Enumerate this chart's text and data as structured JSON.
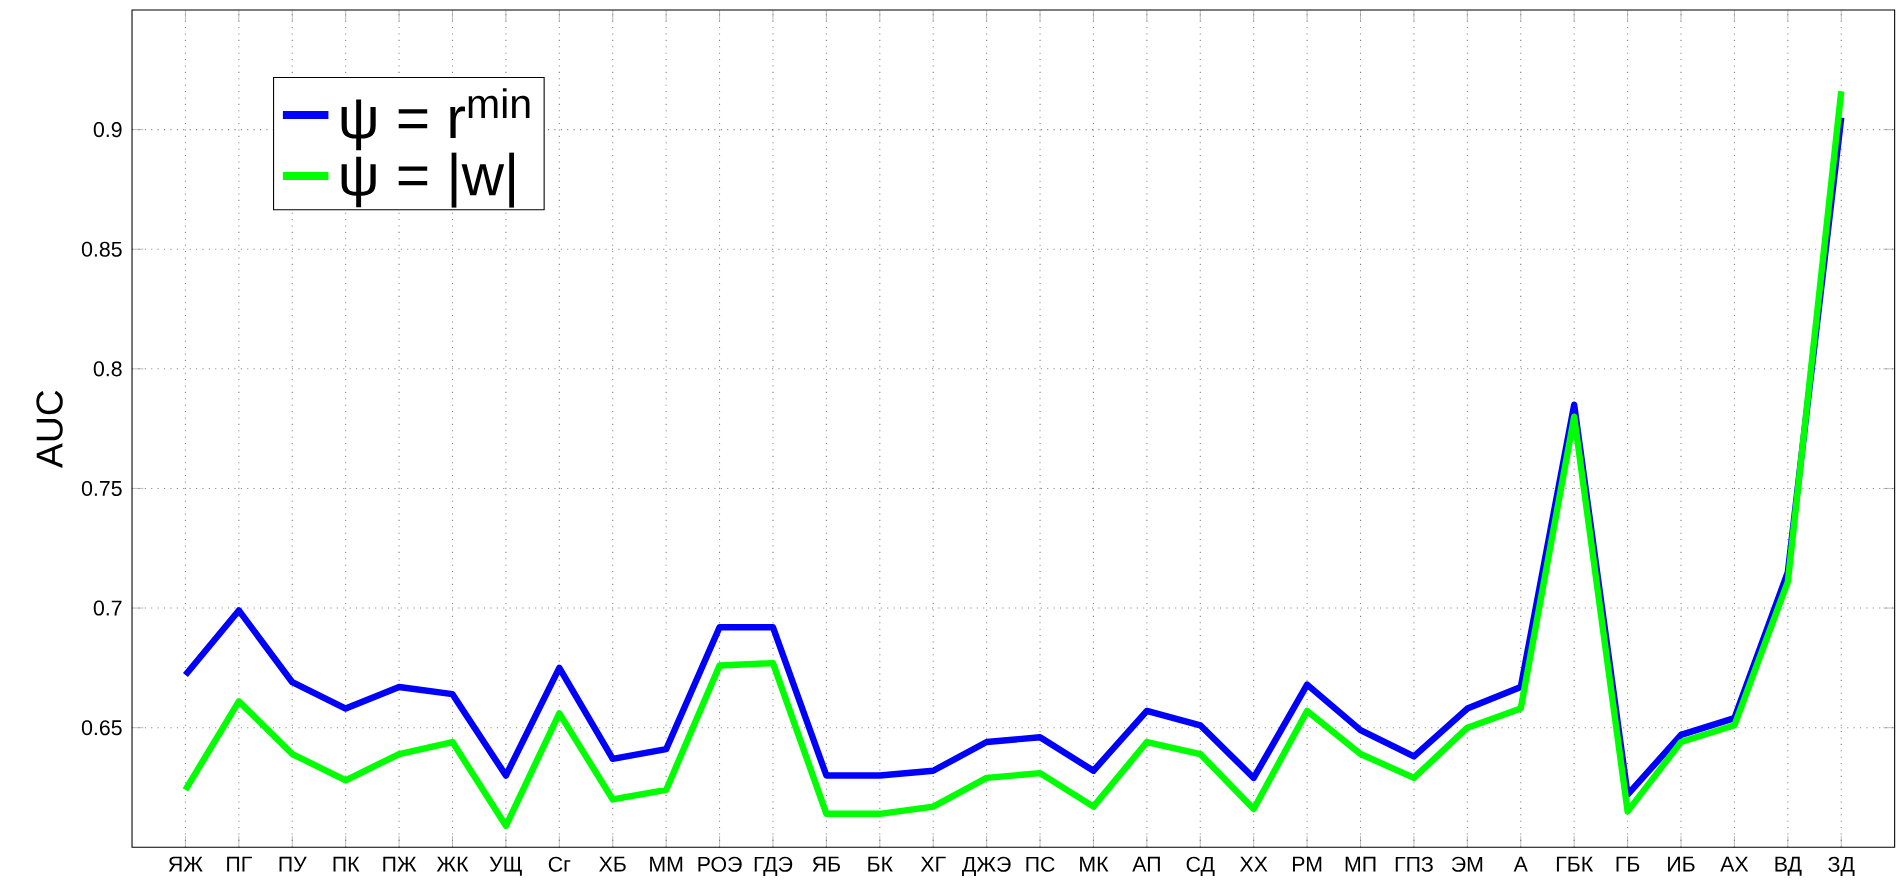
{
  "chart_data": {
    "type": "line",
    "ylabel": "AUC",
    "categories": [
      "ЯЖ",
      "ПГ",
      "ПУ",
      "ПК",
      "ПЖ",
      "ЖК",
      "УЩ",
      "Сг",
      "ХБ",
      "ММ",
      "РОЭ",
      "ГДЭ",
      "ЯБ",
      "БК",
      "ХГ",
      "ДЖЭ",
      "ПС",
      "МК",
      "АП",
      "СД",
      "ХХ",
      "РМ",
      "МП",
      "ГПЗ",
      "ЭМ",
      "А",
      "ГБК",
      "ГБ",
      "ИБ",
      "АХ",
      "ВД",
      "ЗД"
    ],
    "series": [
      {
        "name": "ψ = r$^{min}$",
        "color": "#0000ff",
        "values": [
          0.672,
          0.699,
          0.669,
          0.658,
          0.667,
          0.664,
          0.63,
          0.675,
          0.637,
          0.641,
          0.692,
          0.692,
          0.63,
          0.63,
          0.632,
          0.644,
          0.646,
          0.632,
          0.657,
          0.651,
          0.629,
          0.668,
          0.649,
          0.638,
          0.658,
          0.667,
          0.785,
          0.622,
          0.647,
          0.654,
          0.715,
          0.905
        ]
      },
      {
        "name": "ψ = |w|",
        "color": "#00ff00",
        "values": [
          0.624,
          0.661,
          0.639,
          0.628,
          0.639,
          0.644,
          0.609,
          0.656,
          0.62,
          0.624,
          0.676,
          0.677,
          0.614,
          0.614,
          0.617,
          0.629,
          0.631,
          0.617,
          0.644,
          0.639,
          0.616,
          0.657,
          0.639,
          0.629,
          0.65,
          0.658,
          0.78,
          0.615,
          0.644,
          0.651,
          0.711,
          0.916
        ]
      }
    ],
    "ylim": [
      0.6,
      0.95
    ],
    "yticks": [
      0.65,
      0.7,
      0.75,
      0.8,
      0.85,
      0.9
    ],
    "grid": true,
    "legend": "top left",
    "line_style": "solid",
    "marker": "none"
  }
}
